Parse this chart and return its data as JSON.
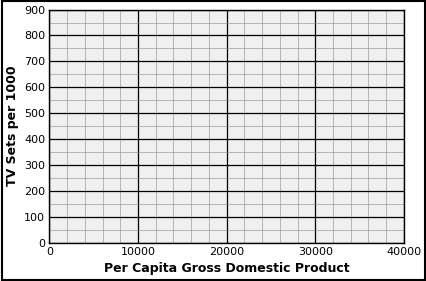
{
  "xlabel": "Per Capita Gross Domestic Product",
  "ylabel": "TV Sets per 1000",
  "xlim": [
    0,
    40000
  ],
  "ylim": [
    0,
    900
  ],
  "x_major_ticks": [
    0,
    10000,
    20000,
    30000,
    40000
  ],
  "y_major_ticks": [
    0,
    100,
    200,
    300,
    400,
    500,
    600,
    700,
    800,
    900
  ],
  "x_minor_tick_interval": 2000,
  "y_minor_tick_interval": 50,
  "bg_color": "#f0f0f0",
  "fig_bg_color": "#ffffff",
  "grid_major_color": "#000000",
  "grid_minor_color": "#888888",
  "border_color": "#000000",
  "xlabel_fontsize": 9,
  "ylabel_fontsize": 9,
  "tick_fontsize": 8,
  "xlabel_fontweight": "bold",
  "ylabel_fontweight": "bold"
}
